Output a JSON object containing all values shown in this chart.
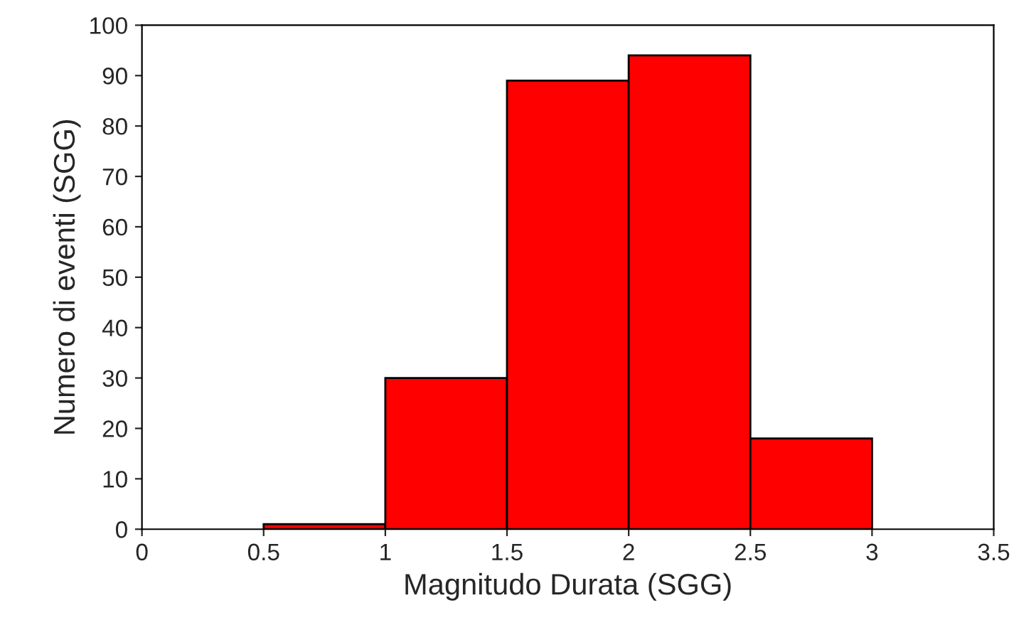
{
  "chart_data": {
    "type": "histogram",
    "xlabel": "Magnitudo Durata (SGG)",
    "ylabel": "Numero di eventi (SGG)",
    "bins": [
      0.5,
      1,
      1.5,
      2,
      2.5,
      3
    ],
    "values": [
      1,
      30,
      89,
      94,
      18
    ],
    "color": "#ff0000",
    "xlim": [
      0,
      3.5
    ],
    "xticks": [
      0,
      0.5,
      1,
      1.5,
      2,
      2.5,
      3,
      3.5
    ],
    "ylim": [
      0,
      100
    ],
    "yticks": [
      0,
      10,
      20,
      30,
      40,
      50,
      60,
      70,
      80,
      90,
      100
    ],
    "grid": false,
    "legend": false
  }
}
